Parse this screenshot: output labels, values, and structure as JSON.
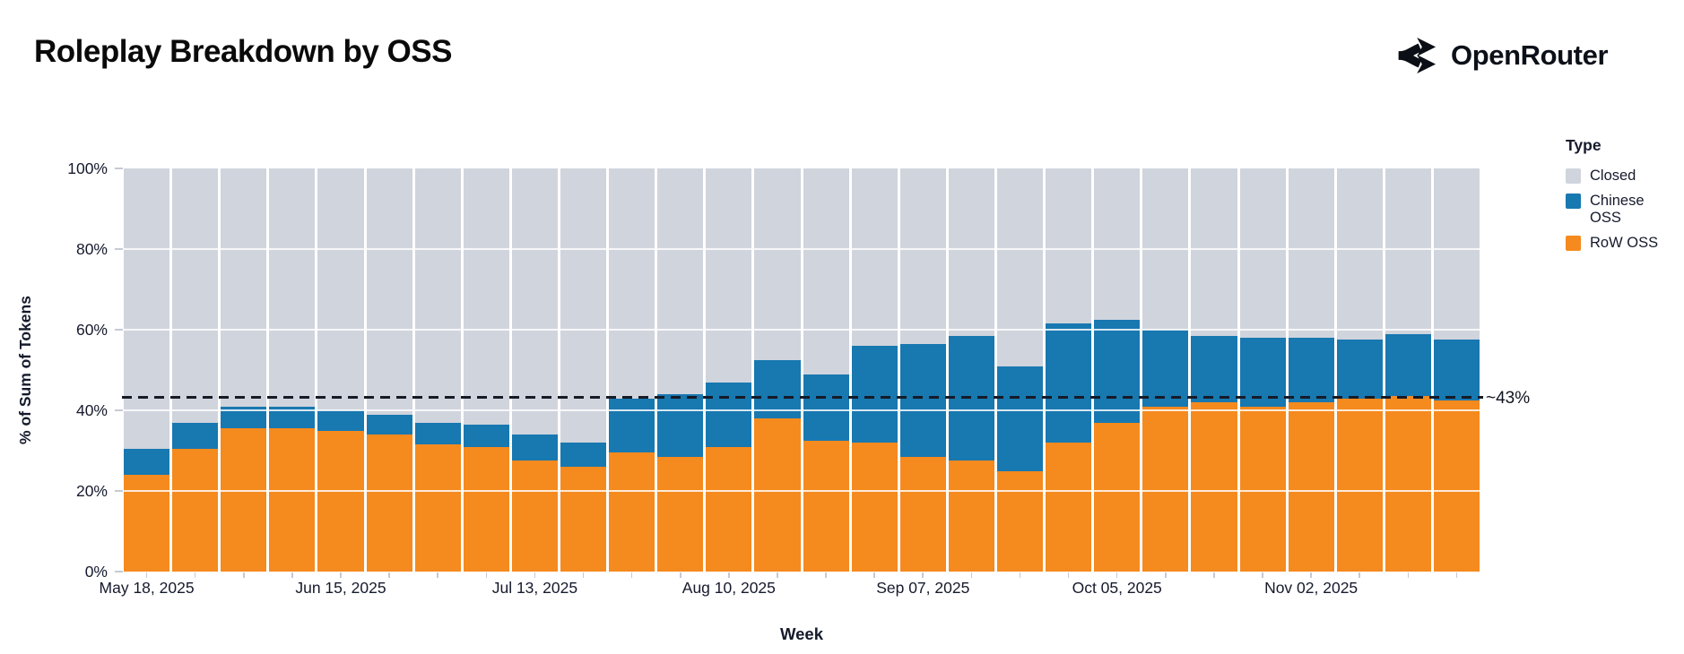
{
  "page": {
    "title": "Roleplay Breakdown by OSS",
    "brand": "OpenRouter"
  },
  "annotation": {
    "label": "~43%",
    "value": 43
  },
  "colors": {
    "row_oss": "#f58a1f",
    "chinese_oss": "#1878b0",
    "closed": "#d0d4dd",
    "annotation_line": "#161b26",
    "text": "#151a2c"
  },
  "chart_data": {
    "type": "bar",
    "stacked": true,
    "normalized_percent": true,
    "title": "Roleplay Breakdown by OSS",
    "xlabel": "Week",
    "ylabel": "% of Sum of Tokens",
    "ylim": [
      0,
      100
    ],
    "grid": true,
    "y_ticks": [
      0,
      20,
      40,
      60,
      80,
      100
    ],
    "y_tick_labels": [
      "0%",
      "20%",
      "40%",
      "60%",
      "80%",
      "100%"
    ],
    "x_tick_indices": [
      0,
      4,
      8,
      12,
      16,
      20,
      24
    ],
    "x_tick_labels": [
      "May 18, 2025",
      "Jun 15, 2025",
      "Jul 13, 2025",
      "Aug 10, 2025",
      "Sep 07, 2025",
      "Oct 05, 2025",
      "Nov 02, 2025"
    ],
    "categories": [
      "May 18, 2025",
      "May 25, 2025",
      "Jun 01, 2025",
      "Jun 08, 2025",
      "Jun 15, 2025",
      "Jun 22, 2025",
      "Jun 29, 2025",
      "Jul 06, 2025",
      "Jul 13, 2025",
      "Jul 20, 2025",
      "Jul 27, 2025",
      "Aug 03, 2025",
      "Aug 10, 2025",
      "Aug 17, 2025",
      "Aug 24, 2025",
      "Aug 31, 2025",
      "Sep 07, 2025",
      "Sep 14, 2025",
      "Sep 21, 2025",
      "Sep 28, 2025",
      "Oct 05, 2025",
      "Oct 12, 2025",
      "Oct 19, 2025",
      "Oct 26, 2025",
      "Nov 02, 2025",
      "Nov 09, 2025",
      "Nov 16, 2025",
      "Nov 23, 2025"
    ],
    "series": [
      {
        "name": "RoW OSS",
        "color": "#f58a1f",
        "values": [
          24,
          30.5,
          35.5,
          35.5,
          35,
          34,
          31.5,
          31,
          27.5,
          26,
          29.5,
          28.5,
          31,
          38,
          32.5,
          32,
          28.5,
          27.5,
          25,
          32,
          37,
          41,
          42,
          41,
          42,
          43,
          43.5,
          42.5
        ]
      },
      {
        "name": "Chinese OSS",
        "color": "#1878b0",
        "values": [
          6.5,
          6.5,
          5.5,
          5.5,
          5,
          5,
          5.5,
          5.5,
          6.5,
          6,
          13.5,
          15.5,
          16,
          14.5,
          16.5,
          24,
          28,
          31,
          26,
          29.5,
          25.5,
          19,
          16.5,
          17,
          16,
          14.5,
          15.5,
          15
        ]
      },
      {
        "name": "Closed",
        "color": "#d0d4dd",
        "values": [
          69.5,
          63,
          59,
          59,
          60,
          61,
          63,
          63.5,
          66,
          68,
          57,
          56,
          53,
          47.5,
          51,
          44,
          43.5,
          41.5,
          49,
          38.5,
          37.5,
          40,
          41.5,
          42,
          42,
          42.5,
          41,
          42.5
        ]
      }
    ],
    "annotation": {
      "label": "~43%",
      "value": 43,
      "style": "dashed"
    },
    "legend": {
      "title": "Type",
      "position": "right",
      "entries": [
        "Closed",
        "Chinese OSS",
        "RoW OSS"
      ]
    }
  }
}
